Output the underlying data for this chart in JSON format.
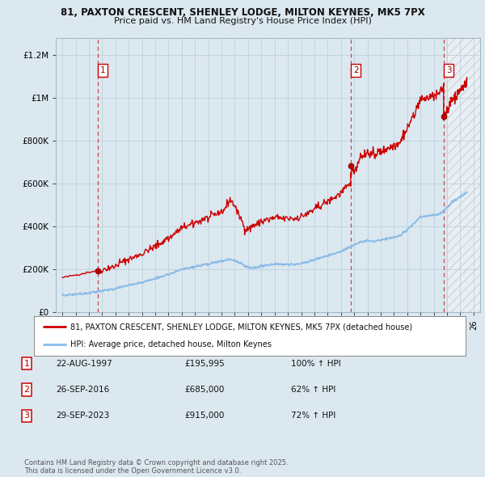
{
  "title1": "81, PAXTON CRESCENT, SHENLEY LODGE, MILTON KEYNES, MK5 7PX",
  "title2": "Price paid vs. HM Land Registry's House Price Index (HPI)",
  "background_color": "#dce8f0",
  "plot_bg_color": "#dce8f0",
  "red_line_color": "#cc0000",
  "blue_line_color": "#88bbe8",
  "sale_dates": [
    1997.644,
    2016.736,
    2023.745
  ],
  "sale_prices": [
    195995,
    685000,
    915000
  ],
  "sale_labels": [
    "1",
    "2",
    "3"
  ],
  "legend_line1": "81, PAXTON CRESCENT, SHENLEY LODGE, MILTON KEYNES, MK5 7PX (detached house)",
  "legend_line2": "HPI: Average price, detached house, Milton Keynes",
  "table_data": [
    [
      "1",
      "22-AUG-1997",
      "£195,995",
      "100% ↑ HPI"
    ],
    [
      "2",
      "26-SEP-2016",
      "£685,000",
      "62% ↑ HPI"
    ],
    [
      "3",
      "29-SEP-2023",
      "£915,000",
      "72% ↑ HPI"
    ]
  ],
  "footnote": "Contains HM Land Registry data © Crown copyright and database right 2025.\nThis data is licensed under the Open Government Licence v3.0.",
  "yticks": [
    0,
    200000,
    400000,
    600000,
    800000,
    1000000,
    1200000
  ],
  "ytick_labels": [
    "£0",
    "£200K",
    "£400K",
    "£600K",
    "£800K",
    "£1M",
    "£1.2M"
  ]
}
